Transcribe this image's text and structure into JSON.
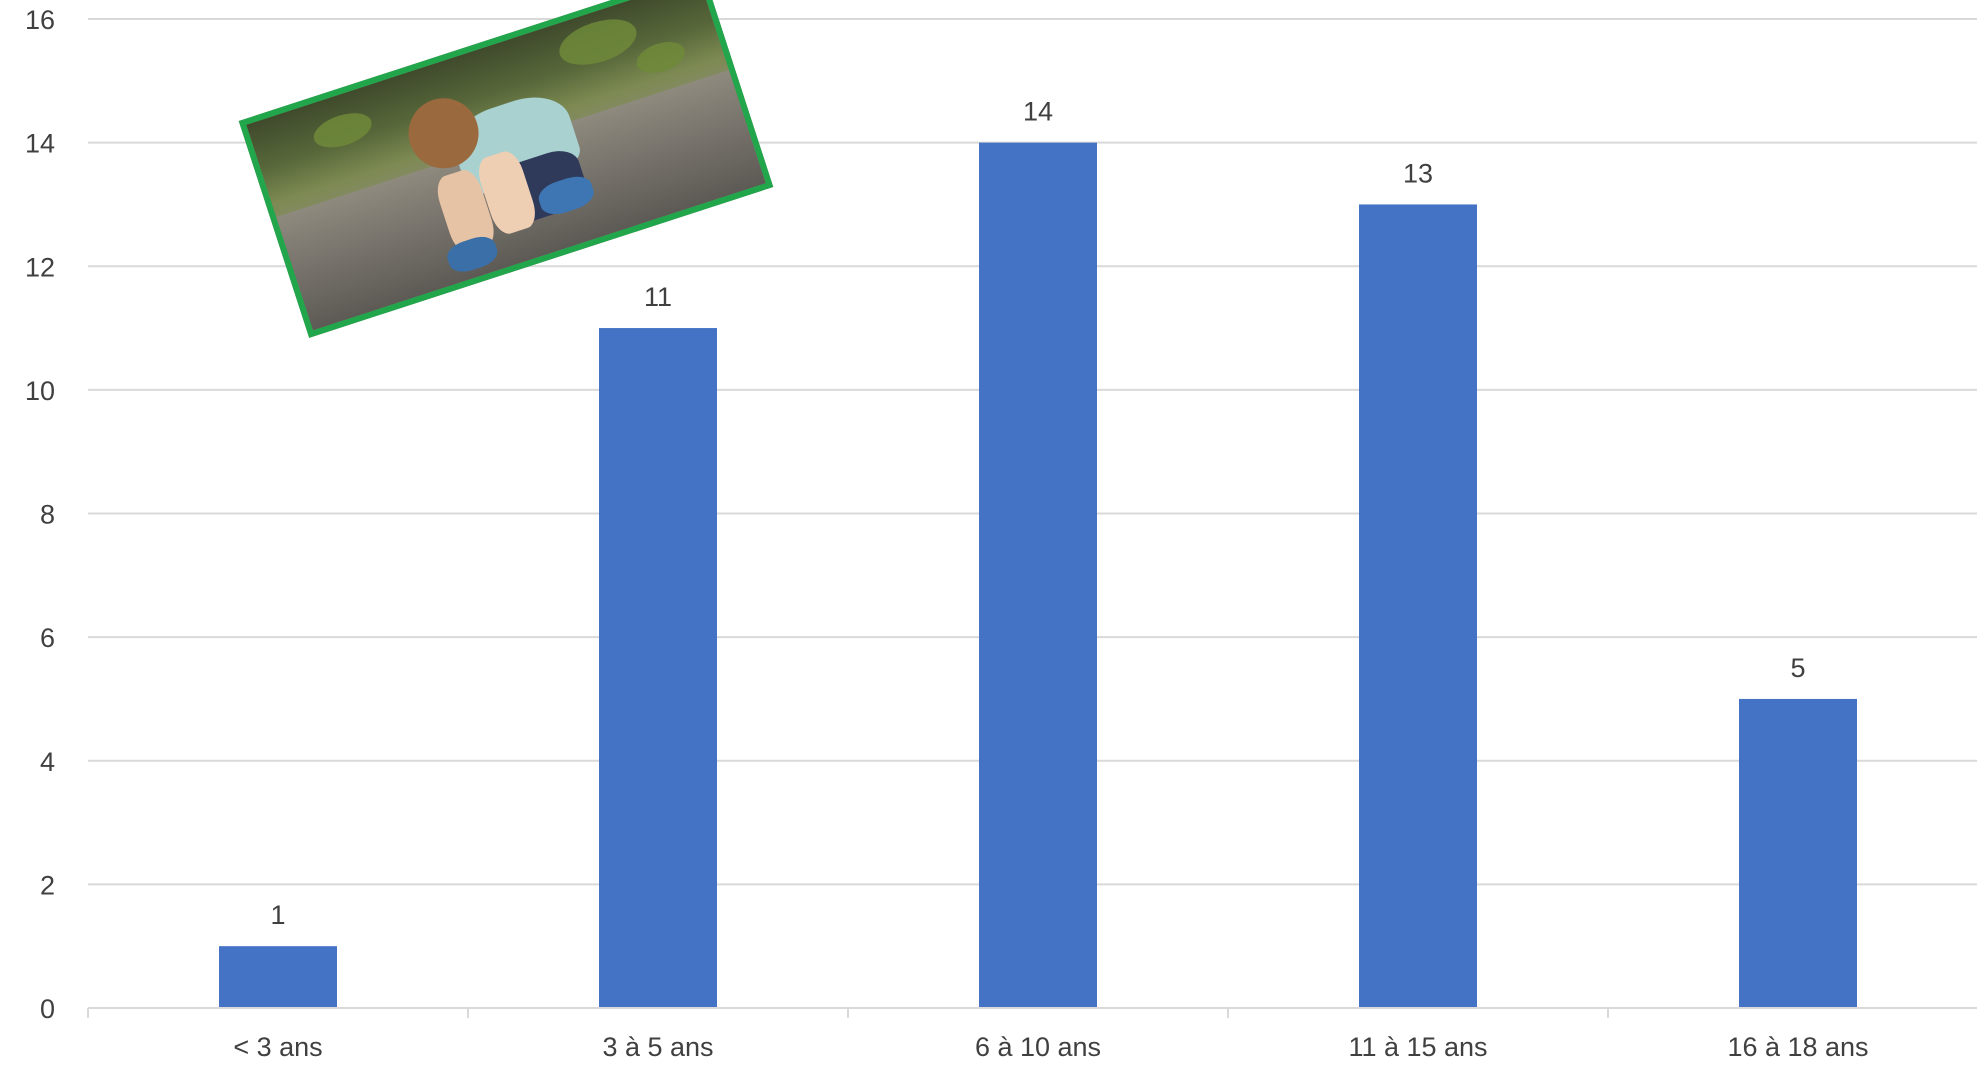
{
  "chart_data": {
    "type": "bar",
    "categories": [
      "< 3 ans",
      "3 à 5 ans",
      "6 à 10 ans",
      "11 à 15 ans",
      "16 à 18 ans"
    ],
    "values": [
      1,
      11,
      14,
      13,
      5
    ],
    "data_labels": [
      "1",
      "11",
      "14",
      "13",
      "5"
    ],
    "ylim": [
      0,
      16
    ],
    "yticks": [
      "0",
      "2",
      "4",
      "6",
      "8",
      "10",
      "12",
      "14",
      "16"
    ],
    "grid": true,
    "legend": "none",
    "title": "",
    "xlabel": "",
    "ylabel": "",
    "bar_color": "#4472c4",
    "grid_color": "#d9d9d9",
    "text_color": "#404040"
  },
  "decoration": {
    "photo_icon": "child-sitting-photo",
    "photo_border_color": "#21a64c"
  }
}
